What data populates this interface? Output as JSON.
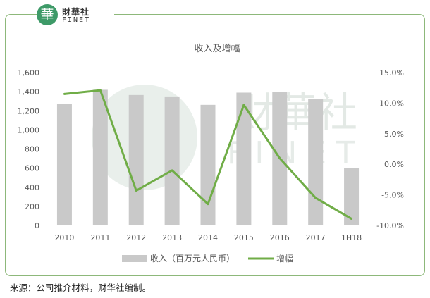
{
  "logo": {
    "badge_char": "華",
    "name_cn": "財華社",
    "name_en": "FINET"
  },
  "watermark": {
    "cn": "財華社",
    "en": "FINET"
  },
  "source_note": "来源：公司推介材料，财华社编制。",
  "colors": {
    "bar": "#c9c9c9",
    "line": "#70ad47",
    "frame": "#8db87a",
    "watermark": "#e6ece8"
  },
  "chart_data": {
    "type": "bar",
    "title": "收入及增幅",
    "categories": [
      "2010",
      "2011",
      "2012",
      "2013",
      "2014",
      "2015",
      "2016",
      "2017",
      "1H18"
    ],
    "series": [
      {
        "name": "收入（百万元人民币）",
        "type": "bar",
        "axis": "left",
        "values": [
          1270,
          1420,
          1365,
          1350,
          1262,
          1390,
          1400,
          1325,
          600
        ]
      },
      {
        "name": "增幅",
        "type": "line",
        "axis": "right",
        "values": [
          11.5,
          12.1,
          -4.3,
          -1.0,
          -6.5,
          9.7,
          1.0,
          -5.5,
          -8.9
        ]
      }
    ],
    "y_left": {
      "min": 0,
      "max": 1600,
      "ticks": [
        "0",
        "200",
        "400",
        "600",
        "800",
        "1,000",
        "1,200",
        "1,400",
        "1,600"
      ]
    },
    "y_right": {
      "min": -10,
      "max": 15,
      "ticks": [
        "-10.0%",
        "-5.0%",
        "0.0%",
        "5.0%",
        "10.0%",
        "15.0%"
      ]
    },
    "grid": false,
    "legend_position": "bottom"
  }
}
